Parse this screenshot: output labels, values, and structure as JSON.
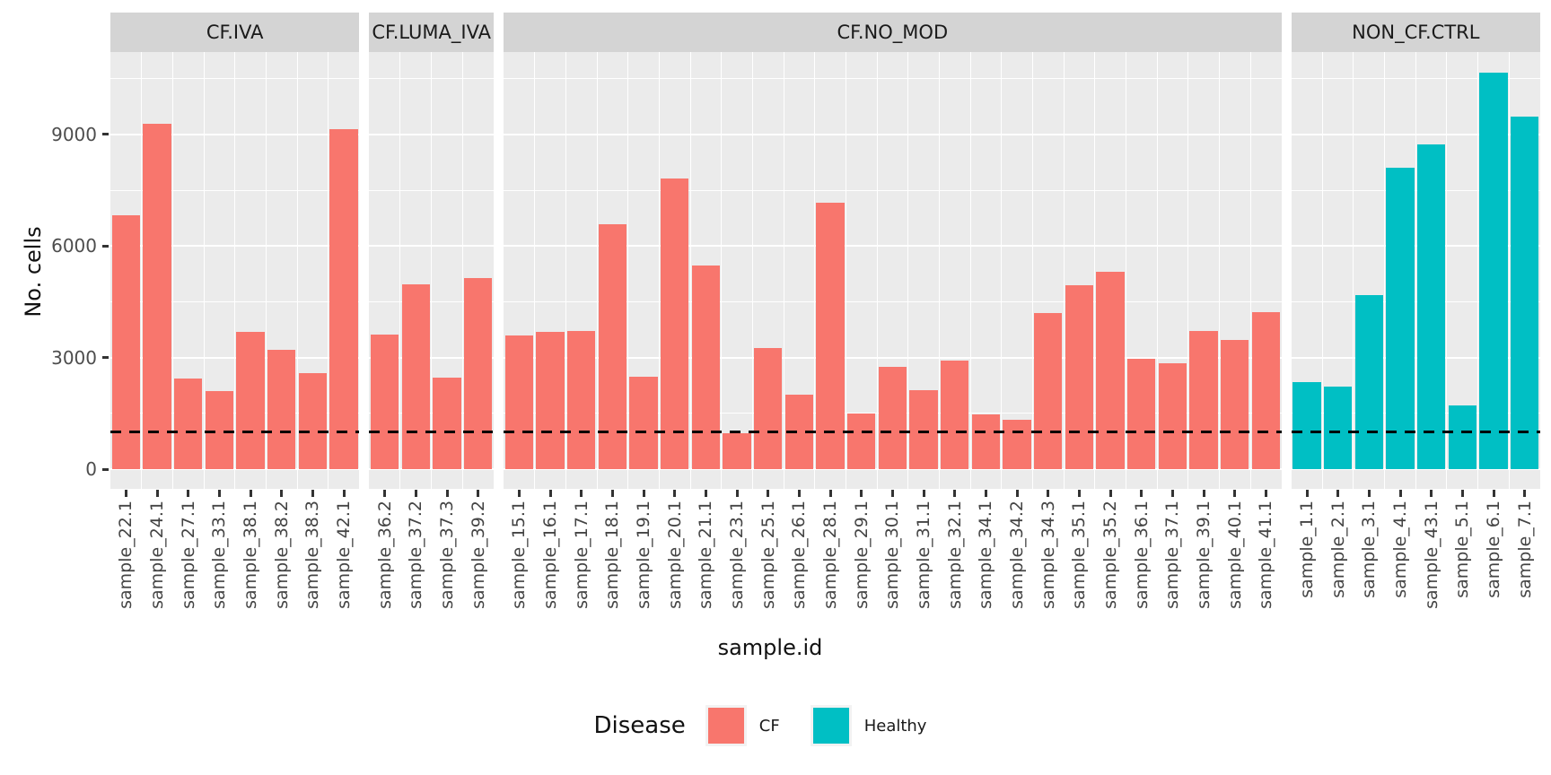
{
  "colors": {
    "cf": "#F8766D",
    "healthy": "#00BFC4",
    "panel_bg": "#EBEBEB",
    "strip_bg": "#D4D4D4",
    "gridline": "#FFFFFF",
    "tick_text": "#4D4D4D",
    "reference_line": "#000000"
  },
  "y_axis": {
    "title": "No. cells",
    "tick_labels": [
      "0",
      "3000",
      "6000",
      "9000"
    ],
    "tick_values": [
      0,
      3000,
      6000,
      9000
    ],
    "minor_values": [
      1500,
      4500,
      7500,
      10500
    ]
  },
  "x_axis": {
    "title": "sample.id"
  },
  "legend": {
    "title": "Disease",
    "items": [
      {
        "label": "CF",
        "color": "#F8766D"
      },
      {
        "label": "Healthy",
        "color": "#00BFC4"
      }
    ]
  },
  "reference_line": {
    "value": 1000,
    "style": "dashed",
    "color": "#000000"
  },
  "chart_data": {
    "type": "bar",
    "title": "",
    "xlabel": "sample.id",
    "ylabel": "No. cells",
    "ylim": [
      0,
      11200
    ],
    "grid": true,
    "legend_position": "bottom",
    "facets": [
      {
        "label": "CF.IVA",
        "group": "CF",
        "categories": [
          "sample_22.1",
          "sample_24.1",
          "sample_27.1",
          "sample_33.1",
          "sample_38.1",
          "sample_38.2",
          "sample_38.3",
          "sample_42.1"
        ],
        "values": [
          6830,
          9290,
          2430,
          2100,
          3690,
          3210,
          2570,
          9130
        ]
      },
      {
        "label": "CF.LUMA_IVA",
        "group": "CF",
        "categories": [
          "sample_36.2",
          "sample_37.2",
          "sample_37.3",
          "sample_39.2"
        ],
        "values": [
          3620,
          4960,
          2450,
          5140
        ]
      },
      {
        "label": "CF.NO_MOD",
        "group": "CF",
        "categories": [
          "sample_15.1",
          "sample_16.1",
          "sample_17.1",
          "sample_18.1",
          "sample_19.1",
          "sample_20.1",
          "sample_21.1",
          "sample_23.1",
          "sample_25.1",
          "sample_26.1",
          "sample_28.1",
          "sample_29.1",
          "sample_30.1",
          "sample_31.1",
          "sample_32.1",
          "sample_34.1",
          "sample_34.2",
          "sample_34.3",
          "sample_35.1",
          "sample_35.2",
          "sample_36.1",
          "sample_37.1",
          "sample_39.1",
          "sample_40.1",
          "sample_41.1"
        ],
        "values": [
          3590,
          3700,
          3720,
          6580,
          2480,
          7820,
          5470,
          960,
          3250,
          2000,
          7170,
          1500,
          2750,
          2130,
          2930,
          1460,
          1320,
          4200,
          4940,
          5300,
          2970,
          2850,
          3710,
          3470,
          4220
        ]
      },
      {
        "label": "NON_CF.CTRL",
        "group": "Healthy",
        "categories": [
          "sample_1.1",
          "sample_2.1",
          "sample_3.1",
          "sample_4.1",
          "sample_43.1",
          "sample_5.1",
          "sample_6.1",
          "sample_7.1"
        ],
        "values": [
          2340,
          2220,
          4680,
          8100,
          8740,
          1720,
          10660,
          9470
        ]
      }
    ]
  }
}
